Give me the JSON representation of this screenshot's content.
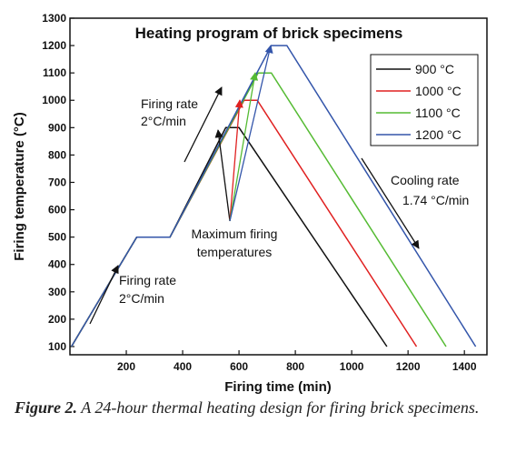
{
  "chart_data": {
    "type": "line",
    "title": "Heating program of brick specimens",
    "xlabel": "Firing time (min)",
    "ylabel": "Firing temperature (°C)",
    "xlim": [
      0,
      1480
    ],
    "ylim": [
      70,
      1300
    ],
    "xticks": [
      200,
      400,
      600,
      800,
      1000,
      1200,
      1400
    ],
    "yticks": [
      100,
      200,
      300,
      400,
      500,
      600,
      700,
      800,
      900,
      1000,
      1100,
      1200,
      1300
    ],
    "legend_position": "right",
    "series": [
      {
        "name": "900 °C",
        "color": "#111111",
        "x": [
          5,
          237,
          355,
          553,
          600,
          1125
        ],
        "y": [
          100,
          500,
          500,
          900,
          900,
          100
        ]
      },
      {
        "name": "1000 °C",
        "color": "#e02020",
        "x": [
          5,
          237,
          355,
          618,
          665,
          1230
        ],
        "y": [
          100,
          500,
          500,
          1000,
          1000,
          100
        ]
      },
      {
        "name": "1100 °C",
        "color": "#55bb33",
        "x": [
          5,
          237,
          355,
          668,
          715,
          1335
        ],
        "y": [
          100,
          500,
          500,
          1100,
          1100,
          100
        ]
      },
      {
        "name": "1200 °C",
        "color": "#3355aa",
        "x": [
          5,
          237,
          355,
          715,
          770,
          1440
        ],
        "y": [
          100,
          500,
          500,
          1200,
          1200,
          100
        ]
      }
    ],
    "annotations": {
      "firing_rate_upper": [
        "Firing rate",
        "2°C/min"
      ],
      "firing_rate_lower": [
        "Firing rate",
        "2°C/min"
      ],
      "max_temps": [
        "Maximum firing",
        "temperatures"
      ],
      "cooling_rate": [
        "Cooling rate",
        "1.74 °C/min"
      ]
    }
  },
  "caption": {
    "label": "Figure 2.",
    "text": "A 24-hour thermal heating design for firing brick specimens."
  }
}
